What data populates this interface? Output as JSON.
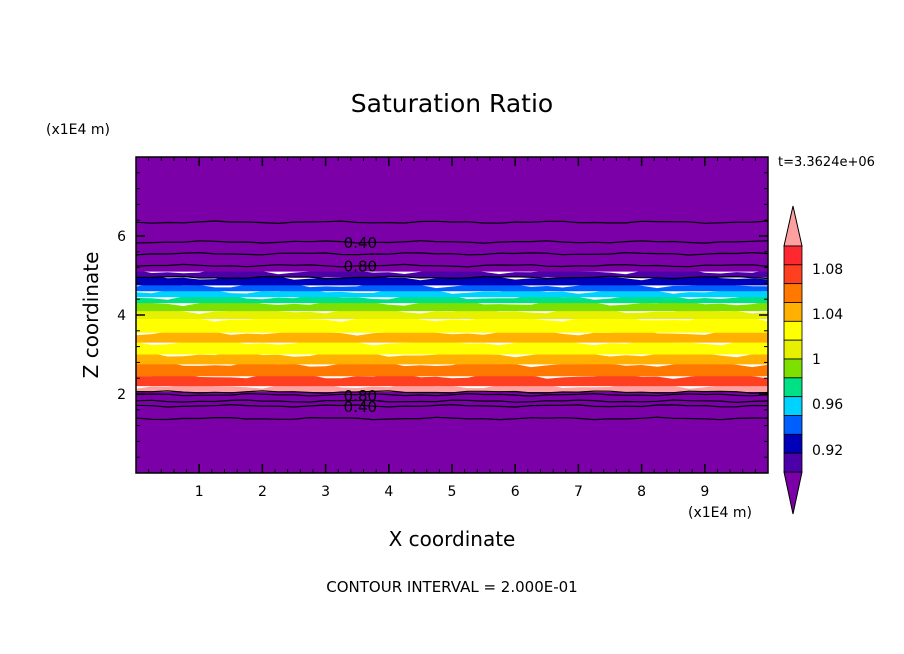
{
  "chart_data": {
    "type": "heatmap",
    "title": "Saturation Ratio",
    "xlabel": "X coordinate",
    "ylabel": "Z coordinate",
    "x_unit": "(x1E4 m)",
    "y_unit": "(x1E4 m)",
    "time_label": "t=3.3624e+06",
    "footer": "CONTOUR INTERVAL = 2.000E-01",
    "xlim": [
      0,
      10
    ],
    "ylim": [
      0,
      8
    ],
    "x_ticks": [
      "1",
      "2",
      "3",
      "4",
      "5",
      "6",
      "7",
      "8",
      "9"
    ],
    "y_ticks": [
      "2",
      "4",
      "6"
    ],
    "colorbar": {
      "labels": [
        "0.92",
        "0.96",
        "1",
        "1.04",
        "1.08"
      ],
      "colors": [
        "#7b00a8",
        "#4b00a8",
        "#0000b8",
        "#0060ff",
        "#00d2ff",
        "#00e084",
        "#7ee000",
        "#e6f000",
        "#ffff00",
        "#ffb000",
        "#ff7800",
        "#ff4020",
        "#ff2830",
        "#ffa0a0"
      ],
      "levels": [
        0.9,
        0.92,
        0.94,
        0.96,
        0.98,
        1.0,
        1.02,
        1.04,
        1.06,
        1.08,
        1.1
      ]
    },
    "bands": [
      {
        "z0": 0.0,
        "z1": 2.05,
        "color": "#7b00a8"
      },
      {
        "z0": 2.05,
        "z1": 2.2,
        "color": "#ffa0a0"
      },
      {
        "z0": 2.2,
        "z1": 2.45,
        "color": "#ff4020"
      },
      {
        "z0": 2.45,
        "z1": 2.75,
        "color": "#ff7800"
      },
      {
        "z0": 2.75,
        "z1": 3.0,
        "color": "#ffb000"
      },
      {
        "z0": 3.0,
        "z1": 3.3,
        "color": "#ffff00"
      },
      {
        "z0": 3.3,
        "z1": 3.55,
        "color": "#ffb000"
      },
      {
        "z0": 3.55,
        "z1": 3.9,
        "color": "#ffff00"
      },
      {
        "z0": 3.9,
        "z1": 4.1,
        "color": "#e6f000"
      },
      {
        "z0": 4.1,
        "z1": 4.3,
        "color": "#7ee000"
      },
      {
        "z0": 4.3,
        "z1": 4.45,
        "color": "#00e084"
      },
      {
        "z0": 4.45,
        "z1": 4.6,
        "color": "#00d2ff"
      },
      {
        "z0": 4.6,
        "z1": 4.75,
        "color": "#0060ff"
      },
      {
        "z0": 4.75,
        "z1": 4.95,
        "color": "#0000b8"
      },
      {
        "z0": 4.95,
        "z1": 5.1,
        "color": "#4b00a8"
      },
      {
        "z0": 5.1,
        "z1": 8.0,
        "color": "#7b00a8"
      }
    ],
    "contours": [
      {
        "z": 6.35,
        "label": ""
      },
      {
        "z": 5.85,
        "label": "0.40"
      },
      {
        "z": 5.55,
        "label": ""
      },
      {
        "z": 5.25,
        "label": "0.80"
      },
      {
        "z": 4.95,
        "label": ""
      },
      {
        "z": 2.05,
        "label": ""
      },
      {
        "z": 1.98,
        "label": "0.80"
      },
      {
        "z": 1.82,
        "label": ""
      },
      {
        "z": 1.7,
        "label": "0.40"
      },
      {
        "z": 1.38,
        "label": ""
      }
    ]
  }
}
